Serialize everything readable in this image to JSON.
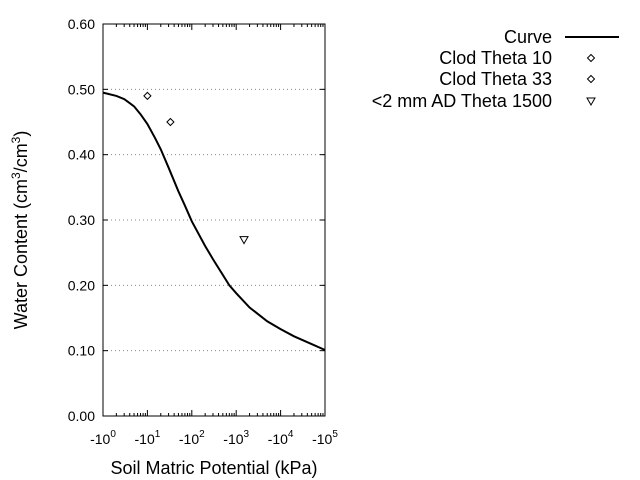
{
  "chart_data": {
    "type": "scatter",
    "xlabel": "Soil Matric Potential (kPa)",
    "ylabel": {
      "text_before": "Water Content (cm",
      "sup1": "3",
      "text_mid": "/cm",
      "sup2": "3",
      "text_after": ")"
    },
    "x_scale": "log",
    "xlim": [
      1,
      100000
    ],
    "ylim": [
      0.0,
      0.6
    ],
    "x_ticks": [
      {
        "value": 1,
        "prefix": "-10",
        "exp": "0"
      },
      {
        "value": 10,
        "prefix": "-10",
        "exp": "1"
      },
      {
        "value": 100,
        "prefix": "-10",
        "exp": "2"
      },
      {
        "value": 1000,
        "prefix": "-10",
        "exp": "3"
      },
      {
        "value": 10000,
        "prefix": "-10",
        "exp": "4"
      },
      {
        "value": 100000,
        "prefix": "-10",
        "exp": "5"
      }
    ],
    "y_ticks": [
      {
        "value": 0.0,
        "label": "0.00"
      },
      {
        "value": 0.1,
        "label": "0.10"
      },
      {
        "value": 0.2,
        "label": "0.20"
      },
      {
        "value": 0.3,
        "label": "0.30"
      },
      {
        "value": 0.4,
        "label": "0.40"
      },
      {
        "value": 0.5,
        "label": "0.50"
      },
      {
        "value": 0.6,
        "label": "0.60"
      }
    ],
    "grid": "horizontal dotted",
    "legend_position": "top-right",
    "series": [
      {
        "name": "Curve",
        "kind": "line",
        "x": [
          1,
          2,
          3,
          5,
          7,
          10,
          15,
          20,
          30,
          50,
          70,
          100,
          200,
          300,
          500,
          700,
          1000,
          2000,
          5000,
          10000,
          20000,
          50000,
          100000
        ],
        "y": [
          0.495,
          0.49,
          0.485,
          0.474,
          0.462,
          0.447,
          0.425,
          0.408,
          0.38,
          0.344,
          0.322,
          0.298,
          0.26,
          0.24,
          0.216,
          0.2,
          0.188,
          0.166,
          0.145,
          0.133,
          0.122,
          0.11,
          0.101
        ]
      },
      {
        "name": "Clod Theta 10",
        "kind": "points",
        "marker": "diamond",
        "x": [
          10
        ],
        "y": [
          0.49
        ]
      },
      {
        "name": "Clod Theta 33",
        "kind": "points",
        "marker": "diamond",
        "x": [
          33
        ],
        "y": [
          0.45
        ]
      },
      {
        "name": "<2 mm AD Theta 1500",
        "kind": "points",
        "marker": "triangle-down",
        "x": [
          1500
        ],
        "y": [
          0.27
        ]
      }
    ]
  }
}
